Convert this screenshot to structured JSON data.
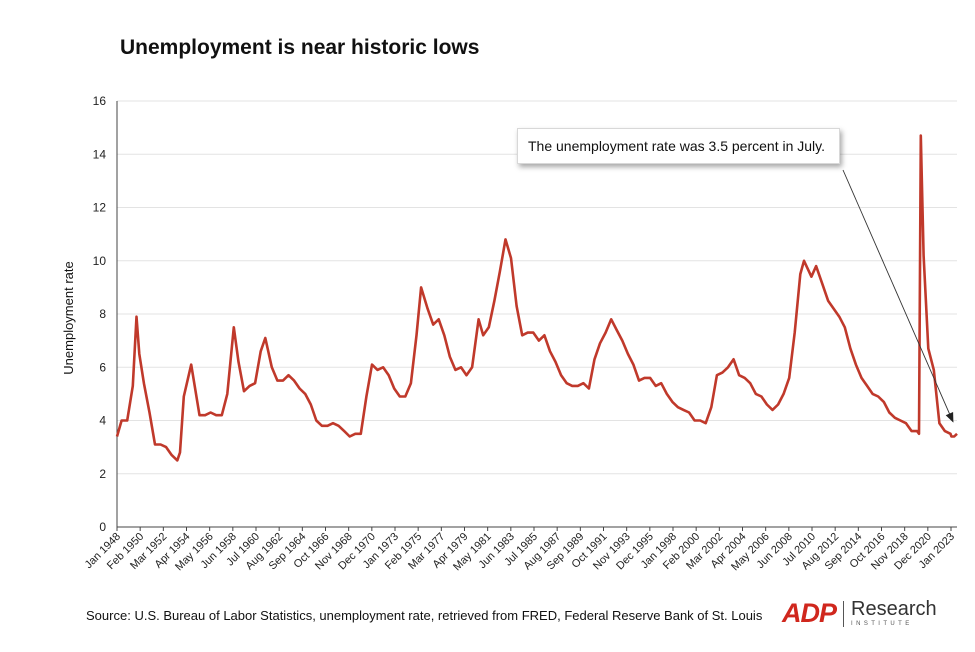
{
  "chart_data": {
    "type": "line",
    "title": "Unemployment is near historic lows",
    "ylabel": "Unemployment rate",
    "xlabel": "",
    "ylim": [
      0,
      16
    ],
    "yticks": [
      0,
      2,
      4,
      6,
      8,
      10,
      12,
      14,
      16
    ],
    "xlim": [
      "1948-01",
      "2023-07"
    ],
    "grid": "horizontal",
    "x_tick_labels": [
      "Jan 1948",
      "Feb 1950",
      "Mar 1952",
      "Apr 1954",
      "May 1956",
      "Jun 1958",
      "Jul 1960",
      "Aug 1962",
      "Sep 1964",
      "Oct 1966",
      "Nov 1968",
      "Dec 1970",
      "Jan 1973",
      "Feb 1975",
      "Mar 1977",
      "Apr 1979",
      "May 1981",
      "Jun 1983",
      "Jul 1985",
      "Aug 1987",
      "Sep 1989",
      "Oct 1991",
      "Nov 1993",
      "Dec 1995",
      "Jan 1998",
      "Feb 2000",
      "Mar 2002",
      "Apr 2004",
      "May 2006",
      "Jun 2008",
      "Jul 2010",
      "Aug 2012",
      "Sep 2014",
      "Oct 2016",
      "Nov 2018",
      "Dec 2020",
      "Jan 2023"
    ],
    "series": [
      {
        "color": "#c0392b",
        "points": [
          [
            "1948-01",
            3.4
          ],
          [
            "1948-06",
            4.0
          ],
          [
            "1948-12",
            4.0
          ],
          [
            "1949-06",
            5.3
          ],
          [
            "1949-10",
            7.9
          ],
          [
            "1950-01",
            6.5
          ],
          [
            "1950-06",
            5.4
          ],
          [
            "1950-12",
            4.3
          ],
          [
            "1951-06",
            3.1
          ],
          [
            "1951-12",
            3.1
          ],
          [
            "1952-06",
            3.0
          ],
          [
            "1952-12",
            2.7
          ],
          [
            "1953-06",
            2.5
          ],
          [
            "1953-09",
            2.8
          ],
          [
            "1954-01",
            4.9
          ],
          [
            "1954-09",
            6.1
          ],
          [
            "1955-06",
            4.2
          ],
          [
            "1955-12",
            4.2
          ],
          [
            "1956-06",
            4.3
          ],
          [
            "1956-12",
            4.2
          ],
          [
            "1957-06",
            4.2
          ],
          [
            "1957-12",
            5.0
          ],
          [
            "1958-07",
            7.5
          ],
          [
            "1958-12",
            6.2
          ],
          [
            "1959-06",
            5.1
          ],
          [
            "1959-12",
            5.3
          ],
          [
            "1960-06",
            5.4
          ],
          [
            "1960-12",
            6.6
          ],
          [
            "1961-05",
            7.1
          ],
          [
            "1961-12",
            6.0
          ],
          [
            "1962-06",
            5.5
          ],
          [
            "1962-12",
            5.5
          ],
          [
            "1963-06",
            5.7
          ],
          [
            "1963-12",
            5.5
          ],
          [
            "1964-06",
            5.2
          ],
          [
            "1964-12",
            5.0
          ],
          [
            "1965-06",
            4.6
          ],
          [
            "1965-12",
            4.0
          ],
          [
            "1966-06",
            3.8
          ],
          [
            "1966-12",
            3.8
          ],
          [
            "1967-06",
            3.9
          ],
          [
            "1967-12",
            3.8
          ],
          [
            "1968-06",
            3.6
          ],
          [
            "1968-12",
            3.4
          ],
          [
            "1969-06",
            3.5
          ],
          [
            "1969-12",
            3.5
          ],
          [
            "1970-06",
            4.9
          ],
          [
            "1970-12",
            6.1
          ],
          [
            "1971-06",
            5.9
          ],
          [
            "1971-12",
            6.0
          ],
          [
            "1972-06",
            5.7
          ],
          [
            "1972-12",
            5.2
          ],
          [
            "1973-06",
            4.9
          ],
          [
            "1973-12",
            4.9
          ],
          [
            "1974-06",
            5.4
          ],
          [
            "1974-12",
            7.2
          ],
          [
            "1975-05",
            9.0
          ],
          [
            "1975-12",
            8.2
          ],
          [
            "1976-06",
            7.6
          ],
          [
            "1976-12",
            7.8
          ],
          [
            "1977-06",
            7.2
          ],
          [
            "1977-12",
            6.4
          ],
          [
            "1978-06",
            5.9
          ],
          [
            "1978-12",
            6.0
          ],
          [
            "1979-06",
            5.7
          ],
          [
            "1979-12",
            6.0
          ],
          [
            "1980-07",
            7.8
          ],
          [
            "1980-12",
            7.2
          ],
          [
            "1981-06",
            7.5
          ],
          [
            "1981-12",
            8.5
          ],
          [
            "1982-06",
            9.6
          ],
          [
            "1982-12",
            10.8
          ],
          [
            "1983-06",
            10.1
          ],
          [
            "1983-12",
            8.3
          ],
          [
            "1984-06",
            7.2
          ],
          [
            "1984-12",
            7.3
          ],
          [
            "1985-06",
            7.3
          ],
          [
            "1985-12",
            7.0
          ],
          [
            "1986-06",
            7.2
          ],
          [
            "1986-12",
            6.6
          ],
          [
            "1987-06",
            6.2
          ],
          [
            "1987-12",
            5.7
          ],
          [
            "1988-06",
            5.4
          ],
          [
            "1988-12",
            5.3
          ],
          [
            "1989-06",
            5.3
          ],
          [
            "1989-12",
            5.4
          ],
          [
            "1990-06",
            5.2
          ],
          [
            "1990-12",
            6.3
          ],
          [
            "1991-06",
            6.9
          ],
          [
            "1991-12",
            7.3
          ],
          [
            "1992-06",
            7.8
          ],
          [
            "1992-12",
            7.4
          ],
          [
            "1993-06",
            7.0
          ],
          [
            "1993-12",
            6.5
          ],
          [
            "1994-06",
            6.1
          ],
          [
            "1994-12",
            5.5
          ],
          [
            "1995-06",
            5.6
          ],
          [
            "1995-12",
            5.6
          ],
          [
            "1996-06",
            5.3
          ],
          [
            "1996-12",
            5.4
          ],
          [
            "1997-06",
            5.0
          ],
          [
            "1997-12",
            4.7
          ],
          [
            "1998-06",
            4.5
          ],
          [
            "1998-12",
            4.4
          ],
          [
            "1999-06",
            4.3
          ],
          [
            "1999-12",
            4.0
          ],
          [
            "2000-06",
            4.0
          ],
          [
            "2000-12",
            3.9
          ],
          [
            "2001-06",
            4.5
          ],
          [
            "2001-12",
            5.7
          ],
          [
            "2002-06",
            5.8
          ],
          [
            "2002-12",
            6.0
          ],
          [
            "2003-06",
            6.3
          ],
          [
            "2003-12",
            5.7
          ],
          [
            "2004-06",
            5.6
          ],
          [
            "2004-12",
            5.4
          ],
          [
            "2005-06",
            5.0
          ],
          [
            "2005-12",
            4.9
          ],
          [
            "2006-06",
            4.6
          ],
          [
            "2006-12",
            4.4
          ],
          [
            "2007-06",
            4.6
          ],
          [
            "2007-12",
            5.0
          ],
          [
            "2008-06",
            5.6
          ],
          [
            "2008-12",
            7.3
          ],
          [
            "2009-06",
            9.5
          ],
          [
            "2009-10",
            10.0
          ],
          [
            "2010-06",
            9.4
          ],
          [
            "2010-11",
            9.8
          ],
          [
            "2011-06",
            9.1
          ],
          [
            "2011-12",
            8.5
          ],
          [
            "2012-06",
            8.2
          ],
          [
            "2012-12",
            7.9
          ],
          [
            "2013-06",
            7.5
          ],
          [
            "2013-12",
            6.7
          ],
          [
            "2014-06",
            6.1
          ],
          [
            "2014-12",
            5.6
          ],
          [
            "2015-06",
            5.3
          ],
          [
            "2015-12",
            5.0
          ],
          [
            "2016-06",
            4.9
          ],
          [
            "2016-12",
            4.7
          ],
          [
            "2017-06",
            4.3
          ],
          [
            "2017-12",
            4.1
          ],
          [
            "2018-06",
            4.0
          ],
          [
            "2018-12",
            3.9
          ],
          [
            "2019-06",
            3.6
          ],
          [
            "2019-12",
            3.6
          ],
          [
            "2020-02",
            3.5
          ],
          [
            "2020-04",
            14.7
          ],
          [
            "2020-07",
            10.2
          ],
          [
            "2020-12",
            6.7
          ],
          [
            "2021-06",
            5.9
          ],
          [
            "2021-12",
            3.9
          ],
          [
            "2022-06",
            3.6
          ],
          [
            "2022-12",
            3.5
          ],
          [
            "2023-01",
            3.4
          ],
          [
            "2023-04",
            3.4
          ],
          [
            "2023-07",
            3.5
          ]
        ]
      }
    ],
    "annotation": {
      "text": "The unemployment rate was 3.5 percent in July.",
      "points_to": [
        "2023-07",
        3.5
      ]
    }
  },
  "source": {
    "label": "Source:",
    "text": "U.S. Bureau of Labor Statistics, unemployment rate, retrieved from FRED, Federal Reserve Bank of St. Louis"
  },
  "logo": {
    "mark": "ADP",
    "word": "Research",
    "sub": "INSTITUTE",
    "color": "#d0271d"
  }
}
